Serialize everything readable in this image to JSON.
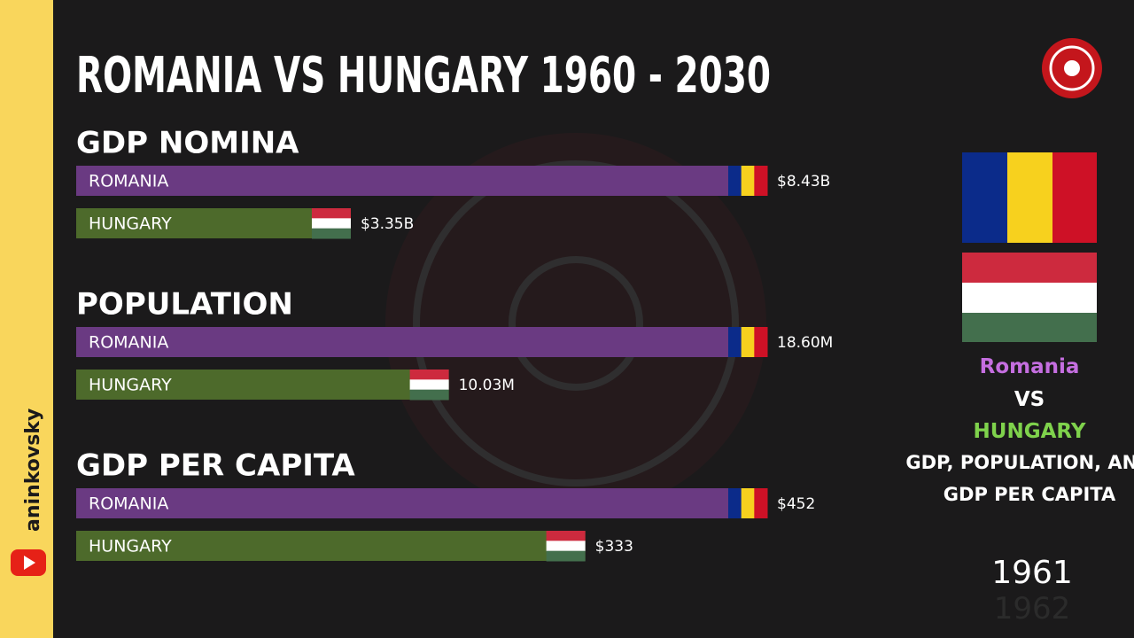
{
  "header": {
    "title": "ROMANIA VS HUNGARY 1960 - 2030"
  },
  "chart_data": [
    {
      "type": "bar",
      "title": "GDP NOMINA",
      "categories": [
        "ROMANIA",
        "HUNGARY"
      ],
      "values": [
        8.43,
        3.35
      ],
      "value_labels": [
        "$8.43B",
        "$3.35B"
      ],
      "colors": [
        "#6a3a82",
        "#4d6a2b"
      ]
    },
    {
      "type": "bar",
      "title": "POPULATION",
      "categories": [
        "ROMANIA",
        "HUNGARY"
      ],
      "values": [
        18.6,
        10.03
      ],
      "value_labels": [
        "18.60M",
        "10.03M"
      ],
      "colors": [
        "#6a3a82",
        "#4d6a2b"
      ]
    },
    {
      "type": "bar",
      "title": "GDP PER CAPITA",
      "categories": [
        "ROMANIA",
        "HUNGARY"
      ],
      "values": [
        452,
        333
      ],
      "value_labels": [
        "$452",
        "$333"
      ],
      "colors": [
        "#6a3a82",
        "#4d6a2b"
      ]
    }
  ],
  "sidebar": {
    "country_1": "Romania",
    "vs": "VS",
    "country_2": "HUNGARY",
    "subtitle_lines": [
      "GDP, POPULATION, AND",
      "GDP PER CAPITA"
    ],
    "year": "1961",
    "next_year": "1962"
  },
  "channel": "aninkovsky"
}
